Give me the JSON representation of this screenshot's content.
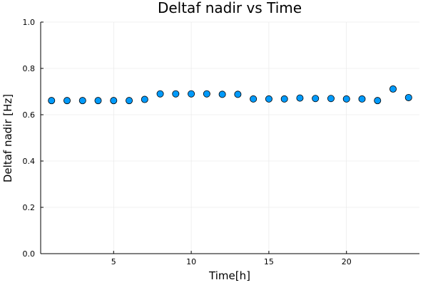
{
  "chart_data": {
    "type": "scatter",
    "title": "Deltaf nadir vs Time",
    "xlabel": "Time[h]",
    "ylabel": "Deltaf nadir [Hz]",
    "xlim": [
      0.3,
      24.7
    ],
    "ylim": [
      0,
      1
    ],
    "xticks": [
      5,
      10,
      15,
      20
    ],
    "yticks": [
      0.0,
      0.2,
      0.4,
      0.6,
      0.8,
      1.0
    ],
    "xtick_labels": [
      "5",
      "10",
      "15",
      "20"
    ],
    "ytick_labels": [
      "0.0",
      "0.2",
      "0.4",
      "0.6",
      "0.8",
      "1.0"
    ],
    "grid": true,
    "legend": "none",
    "marker_color": "#009AFA",
    "series": [
      {
        "x": [
          1,
          2,
          3,
          4,
          5,
          6,
          7,
          8,
          9,
          10,
          11,
          12,
          13,
          14,
          15,
          16,
          17,
          18,
          19,
          20,
          21,
          22,
          23,
          24
        ],
        "y": [
          0.661,
          0.661,
          0.661,
          0.661,
          0.661,
          0.661,
          0.666,
          0.69,
          0.69,
          0.69,
          0.69,
          0.688,
          0.688,
          0.668,
          0.668,
          0.668,
          0.672,
          0.67,
          0.67,
          0.668,
          0.668,
          0.661,
          0.711,
          0.674
        ]
      }
    ]
  }
}
